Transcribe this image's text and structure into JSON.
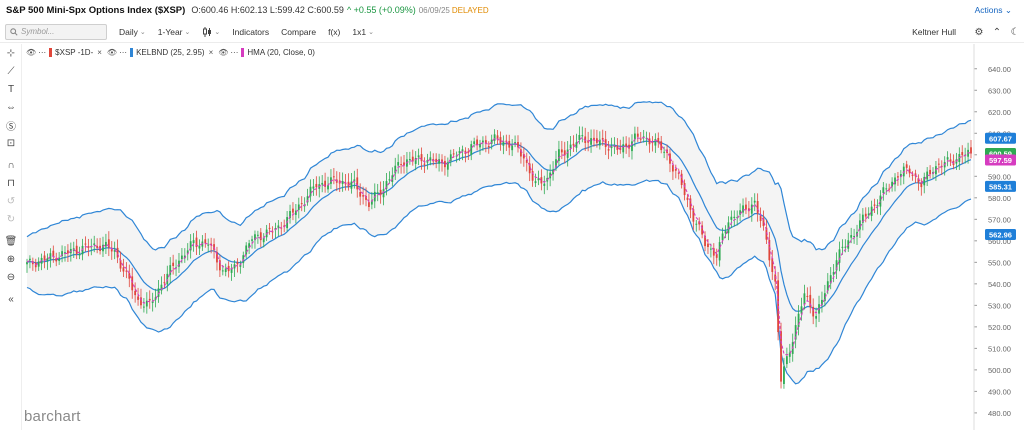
{
  "header": {
    "title": "S&P 500 Mini-Spx Options Index ($XSP)",
    "ohlc": "O:600.46 H:602.13 L:599.42 C:600.59",
    "change": "^ +0.55 (+0.09%)",
    "date": "06/09/25",
    "status": "DELAYED",
    "actions_label": "Actions"
  },
  "toolbar": {
    "search_placeholder": "Symbol...",
    "interval": "Daily",
    "range": "1-Year",
    "bar_type_icon": "candlestick-icon",
    "indicators": "Indicators",
    "compare": "Compare",
    "fx": "f(x)",
    "layout": "1x1",
    "template": "Keltner Hull"
  },
  "legend": {
    "symbol": "$XSP -1D-",
    "keltner": "KELBND (25, 2.95)",
    "hma": "HMA (20, Close, 0)"
  },
  "brand": "barchart",
  "colors": {
    "up": "#2eaa52",
    "down": "#e0463a",
    "band": "#2f86d6",
    "hma": "#d63cc0",
    "band_fill": "#f4f4f4",
    "badge_green": "#2eaa52",
    "badge_blue": "#1f7fd8",
    "badge_pink": "#d63cc0"
  },
  "chart_data": {
    "type": "candlestick",
    "y_ticks": [
      480,
      490,
      500,
      510,
      520,
      530,
      540,
      550,
      560,
      570,
      580,
      590,
      600,
      610,
      620,
      630,
      640
    ],
    "y_tick_labels": [
      "480.00",
      "490.00",
      "500.00",
      "510.00",
      "520.00",
      "530.00",
      "540.00",
      "550.00",
      "560.00",
      "570.00",
      "580.00",
      "590.00",
      "600.00",
      "610.00",
      "620.00",
      "630.00",
      "640.00"
    ],
    "ylim": [
      476.7,
      645
    ],
    "grid": false,
    "price_badges": [
      {
        "label": "607.67",
        "value": 607.67,
        "color": "#1f7fd8"
      },
      {
        "label": "600.59",
        "value": 600.59,
        "color": "#2eaa52"
      },
      {
        "label": "597.59",
        "value": 597.59,
        "color": "#d63cc0"
      },
      {
        "label": "585.31",
        "value": 585.31,
        "color": "#1f7fd8"
      },
      {
        "label": "562.96",
        "value": 562.96,
        "color": "#1f7fd8"
      }
    ],
    "anchors": [
      [
        0,
        549
      ],
      [
        10,
        553
      ],
      [
        20,
        557
      ],
      [
        26,
        558
      ],
      [
        30,
        555
      ],
      [
        35,
        541
      ],
      [
        38,
        532
      ],
      [
        42,
        530
      ],
      [
        46,
        540
      ],
      [
        50,
        548
      ],
      [
        57,
        559
      ],
      [
        62,
        559
      ],
      [
        67,
        546
      ],
      [
        71,
        547
      ],
      [
        77,
        561
      ],
      [
        86,
        566
      ],
      [
        93,
        576
      ],
      [
        99,
        586
      ],
      [
        106,
        588
      ],
      [
        112,
        586
      ],
      [
        117,
        577
      ],
      [
        122,
        585
      ],
      [
        128,
        597
      ],
      [
        136,
        598
      ],
      [
        142,
        596
      ],
      [
        148,
        601
      ],
      [
        154,
        605
      ],
      [
        160,
        607
      ],
      [
        166,
        605
      ],
      [
        170,
        599
      ],
      [
        174,
        586
      ],
      [
        178,
        589
      ],
      [
        182,
        600
      ],
      [
        190,
        608
      ],
      [
        198,
        605
      ],
      [
        203,
        602
      ],
      [
        208,
        608
      ],
      [
        214,
        607
      ],
      [
        219,
        600
      ],
      [
        224,
        586
      ],
      [
        228,
        571
      ],
      [
        232,
        559
      ],
      [
        236,
        553
      ],
      [
        240,
        570
      ],
      [
        244,
        573
      ],
      [
        249,
        578
      ],
      [
        253,
        560
      ],
      [
        256,
        540
      ],
      [
        258,
        495
      ],
      [
        260,
        505
      ],
      [
        263,
        520
      ],
      [
        266,
        535
      ],
      [
        270,
        525
      ],
      [
        273,
        536
      ],
      [
        277,
        552
      ],
      [
        281,
        560
      ],
      [
        286,
        570
      ],
      [
        290,
        577
      ],
      [
        294,
        584
      ],
      [
        298,
        591
      ],
      [
        302,
        593
      ],
      [
        306,
        586
      ],
      [
        310,
        594
      ],
      [
        316,
        597
      ],
      [
        320,
        600
      ],
      [
        323,
        600.59
      ]
    ]
  }
}
